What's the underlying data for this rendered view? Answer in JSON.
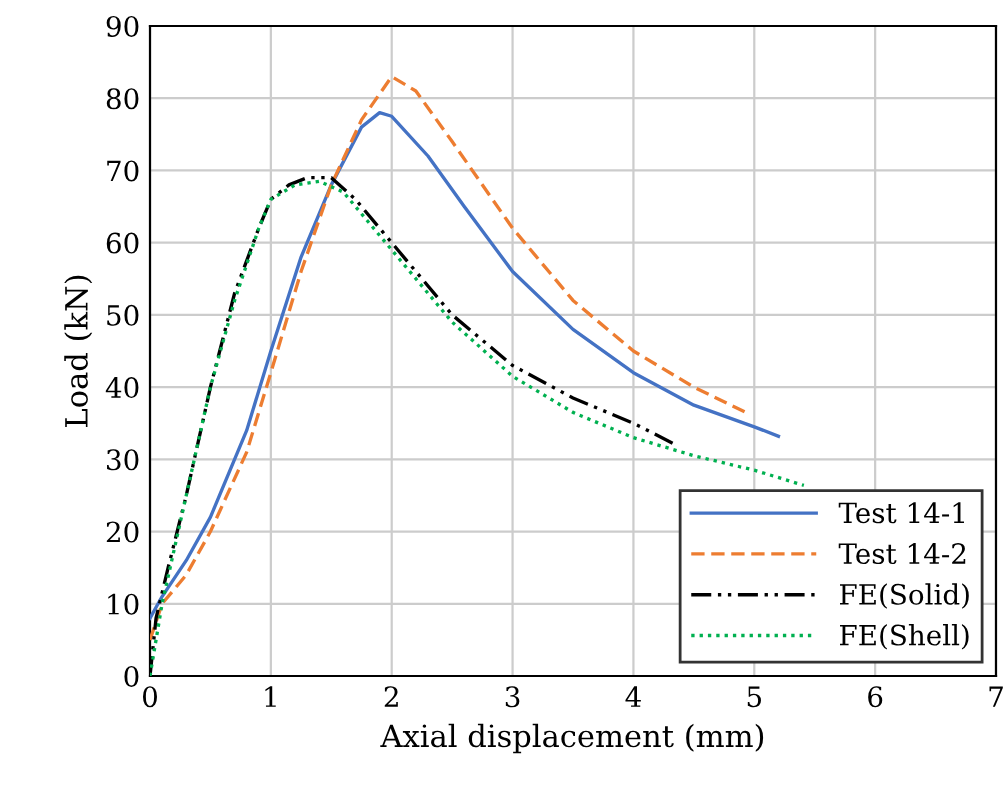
{
  "chart_data": {
    "type": "line",
    "xlabel": "Axial displacement (mm)",
    "ylabel": "Load (kN)",
    "xlim": [
      0,
      7
    ],
    "xticks": [
      0,
      1,
      2,
      3,
      4,
      5,
      6,
      7
    ],
    "ylim": [
      0,
      90
    ],
    "yticks": [
      0,
      10,
      20,
      30,
      40,
      50,
      60,
      70,
      80,
      90
    ],
    "grid": true,
    "legend": "bottom right",
    "marker": "none",
    "series": [
      {
        "name": "Test 14-1",
        "color": "#4472c4",
        "line_style": "solid",
        "x": [
          0,
          0.1,
          0.3,
          0.5,
          0.8,
          1.0,
          1.25,
          1.5,
          1.75,
          1.9,
          2.0,
          2.3,
          2.6,
          3.0,
          3.5,
          4.0,
          4.5,
          5.0,
          5.2
        ],
        "values": [
          8,
          11,
          16,
          22,
          34,
          45,
          58,
          68,
          76,
          78,
          77.5,
          72,
          65,
          56,
          48,
          42,
          37.5,
          34.5,
          33.2
        ]
      },
      {
        "name": "Test 14-2",
        "color": "#ed7d31",
        "line_style": "dashed",
        "x": [
          0,
          0.1,
          0.3,
          0.5,
          0.8,
          1.0,
          1.25,
          1.5,
          1.75,
          2.0,
          2.2,
          2.5,
          3.0,
          3.5,
          4.0,
          4.5,
          4.93
        ],
        "values": [
          5,
          10,
          14,
          20,
          31,
          42,
          56,
          68,
          77,
          83,
          81,
          74,
          62,
          52,
          45,
          40,
          36.5
        ]
      },
      {
        "name": "FE(Solid)",
        "color": "#000000",
        "line_style": "dashdotdot",
        "x": [
          0,
          0.05,
          0.15,
          0.3,
          0.5,
          0.7,
          0.9,
          1.0,
          1.15,
          1.3,
          1.5,
          1.7,
          2.0,
          2.5,
          3.0,
          3.5,
          4.0,
          4.34
        ],
        "values": [
          0,
          8,
          15,
          25,
          40,
          53,
          62,
          66,
          68,
          69,
          69,
          66,
          60,
          50,
          43,
          38.5,
          35,
          32.1
        ]
      },
      {
        "name": "FE(Shell)",
        "color": "#00b050",
        "line_style": "dotted",
        "x": [
          0,
          0.1,
          0.3,
          0.5,
          0.7,
          0.9,
          1.0,
          1.2,
          1.4,
          1.6,
          1.8,
          2.0,
          2.5,
          3.0,
          3.5,
          4.0,
          4.5,
          5.0,
          5.41
        ],
        "values": [
          0,
          10,
          25,
          40,
          52,
          62,
          66,
          68,
          68.5,
          67,
          63,
          59,
          49,
          41.5,
          36.5,
          33,
          30.5,
          28.5,
          26.4
        ]
      }
    ]
  }
}
